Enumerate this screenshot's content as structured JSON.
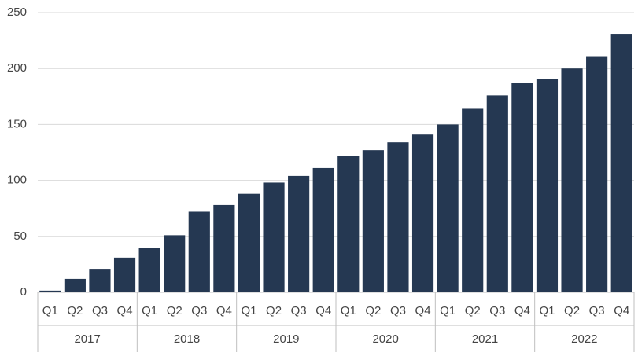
{
  "chart_data": {
    "type": "bar",
    "color": "#253852",
    "categories": [
      "Q1",
      "Q2",
      "Q3",
      "Q4",
      "Q1",
      "Q2",
      "Q3",
      "Q4",
      "Q1",
      "Q2",
      "Q3",
      "Q4",
      "Q1",
      "Q2",
      "Q3",
      "Q4",
      "Q1",
      "Q2",
      "Q3",
      "Q4",
      "Q1",
      "Q2",
      "Q3",
      "Q4"
    ],
    "groups": [
      "2017",
      "2018",
      "2019",
      "2020",
      "2021",
      "2022"
    ],
    "values": [
      1.5,
      12,
      21,
      31,
      40,
      51,
      72,
      78,
      88,
      98,
      104,
      111,
      122,
      127,
      134,
      141,
      150,
      164,
      176,
      187,
      191,
      200,
      211,
      231
    ],
    "ylim": [
      0,
      250
    ],
    "yticks": [
      0,
      50,
      100,
      150,
      200,
      250
    ],
    "grid": true
  }
}
